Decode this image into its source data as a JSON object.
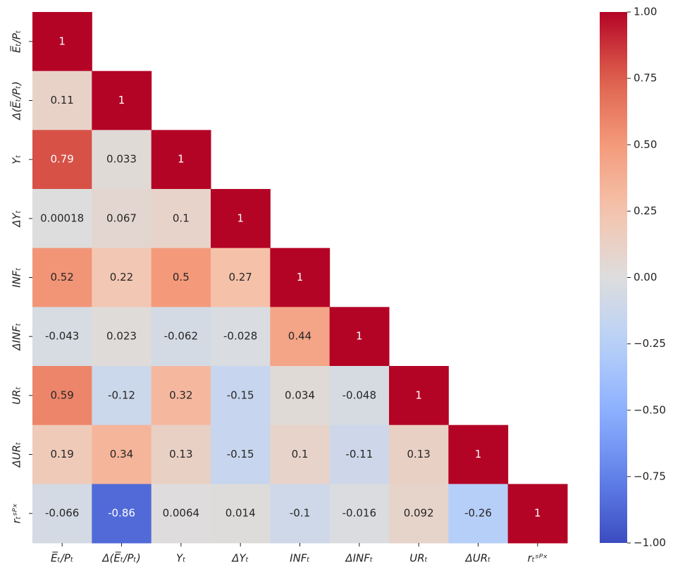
{
  "chart_data": {
    "type": "heatmap",
    "colormap": "coolwarm",
    "categories": [
      "E̅ₜ/Pₜ",
      "Δ(E̅ₜ/Pₜ)",
      "Yₜ",
      "ΔYₜ",
      "INFₜ",
      "ΔINFₜ",
      "URₜ",
      "ΔURₜ",
      "rₜˢᴾˣ"
    ],
    "values": [
      [
        1,
        null,
        null,
        null,
        null,
        null,
        null,
        null,
        null
      ],
      [
        0.11,
        1,
        null,
        null,
        null,
        null,
        null,
        null,
        null
      ],
      [
        0.79,
        0.033,
        1,
        null,
        null,
        null,
        null,
        null,
        null
      ],
      [
        0.00018,
        0.067,
        0.1,
        1,
        null,
        null,
        null,
        null,
        null
      ],
      [
        0.52,
        0.22,
        0.5,
        0.27,
        1,
        null,
        null,
        null,
        null
      ],
      [
        -0.043,
        0.023,
        -0.062,
        -0.028,
        0.44,
        1,
        null,
        null,
        null
      ],
      [
        0.59,
        -0.12,
        0.32,
        -0.15,
        0.034,
        -0.048,
        1,
        null,
        null
      ],
      [
        0.19,
        0.34,
        0.13,
        -0.15,
        0.1,
        -0.11,
        0.13,
        1,
        null
      ],
      [
        -0.066,
        -0.86,
        0.0064,
        0.014,
        -0.1,
        -0.016,
        0.092,
        -0.26,
        1
      ]
    ],
    "clim": [
      -1,
      1
    ],
    "cticks": [
      {
        "value": -1,
        "label": "−1.00"
      },
      {
        "value": -0.75,
        "label": "−0.75"
      },
      {
        "value": -0.5,
        "label": "−0.50"
      },
      {
        "value": -0.25,
        "label": "−0.25"
      },
      {
        "value": 0,
        "label": "0.00"
      },
      {
        "value": 0.25,
        "label": "0.25"
      },
      {
        "value": 0.5,
        "label": "0.50"
      },
      {
        "value": 0.75,
        "label": "0.75"
      },
      {
        "value": 1,
        "label": "1.00"
      }
    ]
  }
}
